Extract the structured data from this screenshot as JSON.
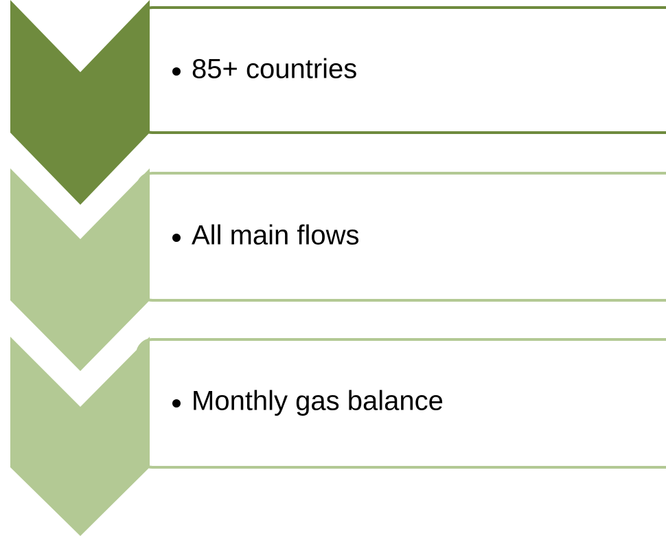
{
  "items": [
    {
      "text": "85+ countries"
    },
    {
      "text": "All main flows"
    },
    {
      "text": "Monthly gas balance"
    }
  ]
}
